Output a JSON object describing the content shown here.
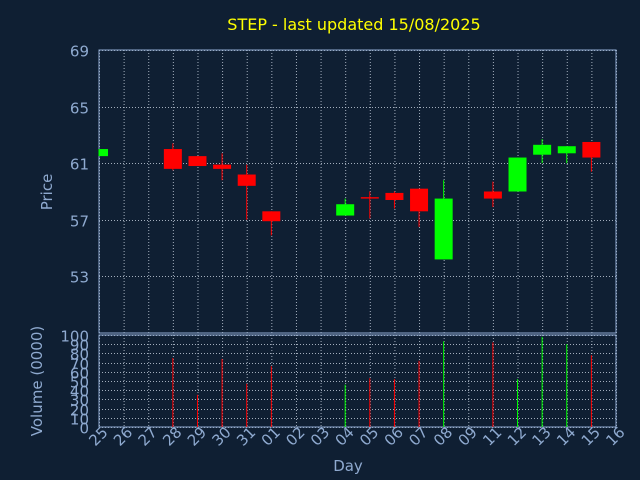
{
  "chart_data": {
    "type": "candlestick",
    "title": "STEP - last updated 15/08/2025",
    "price_panel": {
      "ylabel": "Price",
      "ylim": [
        49,
        69
      ],
      "yticks": [
        "53",
        "57",
        "61",
        "65",
        "69"
      ],
      "grid": true
    },
    "volume_panel": {
      "ylabel": "Volume (0000)",
      "ylim": [
        0,
        100
      ],
      "yticks": [
        "0",
        "10",
        "20",
        "30",
        "40",
        "50",
        "60",
        "70",
        "80",
        "90",
        "100"
      ],
      "grid": true
    },
    "xlabel": "Day",
    "categories": [
      "25",
      "26",
      "27",
      "28",
      "29",
      "30",
      "31",
      "01",
      "02",
      "03",
      "04",
      "05",
      "06",
      "07",
      "08",
      "09",
      "11",
      "12",
      "13",
      "14",
      "15",
      "16"
    ],
    "colors": {
      "background": "#0f1f33",
      "up": "#00ff00",
      "down": "#ff0000",
      "axis_text": "#8faad0",
      "title": "#ffff00",
      "frame": "#8faad0",
      "grid": "#c8d2e0"
    },
    "series": [
      {
        "day": "25",
        "open": 61.5,
        "close": 62.0,
        "high": 62.0,
        "low": 61.5,
        "volume": 0
      },
      {
        "day": "28",
        "open": 62.0,
        "close": 60.6,
        "high": 62.4,
        "low": 60.5,
        "volume": 75
      },
      {
        "day": "29",
        "open": 61.5,
        "close": 60.8,
        "high": 61.5,
        "low": 60.8,
        "volume": 35
      },
      {
        "day": "30",
        "open": 60.9,
        "close": 60.6,
        "high": 61.7,
        "low": 59.8,
        "volume": 74
      },
      {
        "day": "31",
        "open": 60.2,
        "close": 59.4,
        "high": 60.9,
        "low": 57.0,
        "volume": 47
      },
      {
        "day": "01",
        "open": 57.6,
        "close": 56.9,
        "high": 57.6,
        "low": 55.9,
        "volume": 66
      },
      {
        "day": "04",
        "open": 57.3,
        "close": 58.1,
        "high": 58.5,
        "low": 57.3,
        "volume": 46
      },
      {
        "day": "05",
        "open": 58.6,
        "close": 58.5,
        "high": 59.0,
        "low": 57.1,
        "volume": 53
      },
      {
        "day": "06",
        "open": 58.9,
        "close": 58.4,
        "high": 59.0,
        "low": 57.8,
        "volume": 52
      },
      {
        "day": "07",
        "open": 59.2,
        "close": 57.6,
        "high": 59.2,
        "low": 56.5,
        "volume": 72
      },
      {
        "day": "08",
        "open": 54.2,
        "close": 58.5,
        "high": 59.8,
        "low": 54.2,
        "volume": 93
      },
      {
        "day": "11",
        "open": 59.0,
        "close": 58.5,
        "high": 59.7,
        "low": 57.9,
        "volume": 92
      },
      {
        "day": "12",
        "open": 59.0,
        "close": 61.4,
        "high": 61.4,
        "low": 59.0,
        "volume": 52
      },
      {
        "day": "13",
        "open": 61.6,
        "close": 62.3,
        "high": 62.7,
        "low": 61.0,
        "volume": 98
      },
      {
        "day": "14",
        "open": 61.7,
        "close": 62.2,
        "high": 62.2,
        "low": 61.0,
        "volume": 90
      },
      {
        "day": "15",
        "open": 62.5,
        "close": 61.4,
        "high": 62.5,
        "low": 60.4,
        "volume": 78
      }
    ]
  }
}
